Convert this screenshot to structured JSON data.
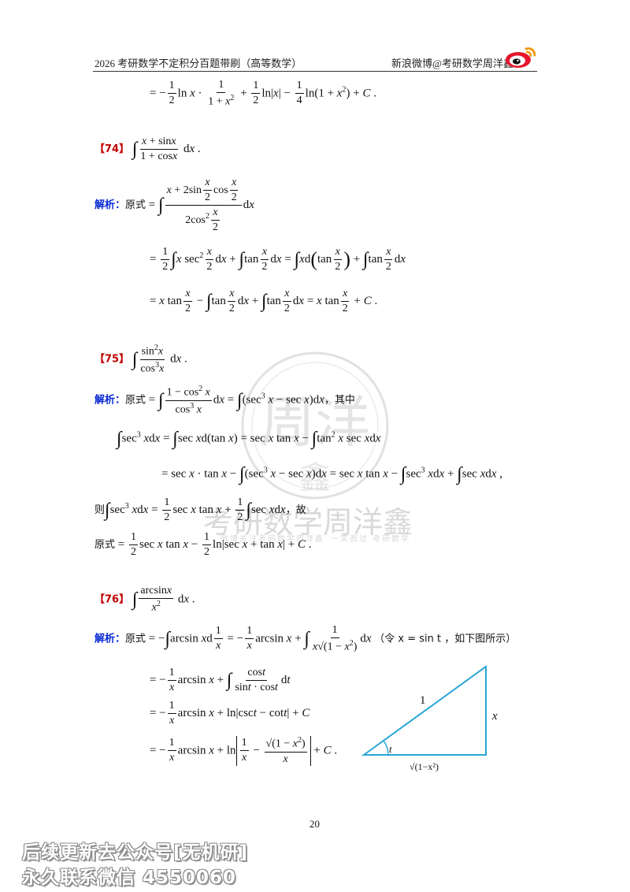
{
  "header": {
    "left_title": "2026 考研数学不定积分百题带刷（高等数学）",
    "right_title": "新浪微博@考研数学周洋鑫",
    "logo_icon": "weibo-logo"
  },
  "problem_74": {
    "number": "【74】"
  },
  "problem_75": {
    "number": "【75】"
  },
  "problem_76": {
    "number": "【76】",
    "triangle": {
      "hypotenuse": "1",
      "opposite": "x",
      "angle": "t",
      "adjacent": "√(1−x²)"
    }
  },
  "labels": {
    "jiexi": "解析：",
    "yuanshi": "原式",
    "qizhong": "，其中",
    "ze": "则",
    "gu": "，故",
    "let": "（令 x = sin t ，如下图所示）"
  },
  "page": {
    "number": "20"
  },
  "watermark": {
    "text": "考研数学周洋鑫",
    "small_left": "微博关注考研数学周洋鑫",
    "small_right": "一笑而过 考研数学"
  },
  "footer": {
    "line1": "后续更新去公众号[无机研]",
    "line2": "永久联系微信 4550060"
  },
  "colors": {
    "problem_number": "#c00000",
    "analysis_label": "#0a2ad6",
    "triangle": "#2aa6d6"
  }
}
